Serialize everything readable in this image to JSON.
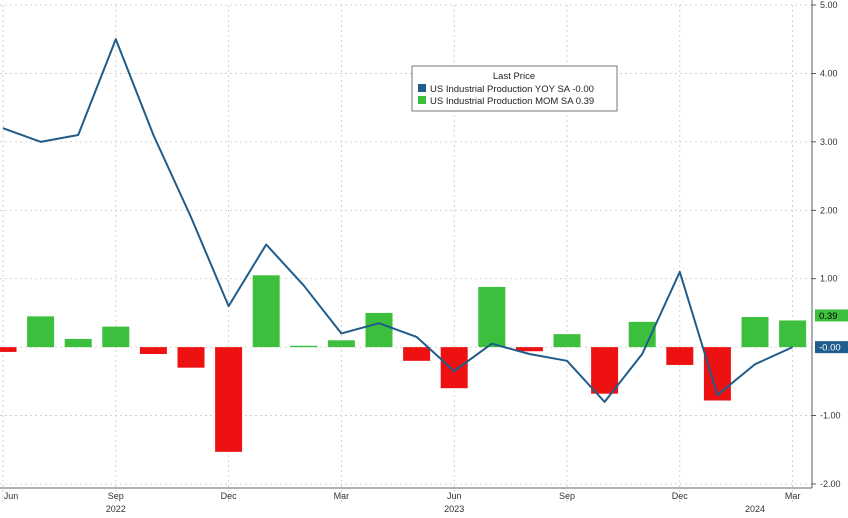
{
  "chart_data": {
    "type": "bar+line",
    "legend": {
      "title": "Last Price",
      "placement": "top-center",
      "entries": [
        {
          "label": "US Industrial Production YOY SA -0.00",
          "color": "#1f5c8b"
        },
        {
          "label": "US Industrial Production MOM SA 0.39",
          "color": "#3cbf3c"
        }
      ]
    },
    "ylim": [
      -2.0,
      5.0
    ],
    "y_ticks": [
      "5.00",
      "4.00",
      "3.00",
      "2.00",
      "1.00",
      "-1.00",
      "-2.00"
    ],
    "x_ticks": [
      "Jun",
      "Sep",
      "Dec",
      "Mar",
      "Jun",
      "Sep",
      "Dec",
      "Mar"
    ],
    "x_tick_index": [
      0,
      3,
      6,
      9,
      12,
      15,
      18,
      21
    ],
    "x_years": [
      "2022",
      "2023",
      "2024"
    ],
    "x_year_index": [
      3,
      12,
      20
    ],
    "categories": [
      "Jun 2022",
      "Jul 2022",
      "Aug 2022",
      "Sep 2022",
      "Oct 2022",
      "Nov 2022",
      "Dec 2022",
      "Jan 2023",
      "Feb 2023",
      "Mar 2023",
      "Apr 2023",
      "May 2023",
      "Jun 2023",
      "Jul 2023",
      "Aug 2023",
      "Sep 2023",
      "Oct 2023",
      "Nov 2023",
      "Dec 2023",
      "Jan 2024",
      "Feb 2024",
      "Mar 2024"
    ],
    "series": [
      {
        "name": "US Industrial Production YOY SA",
        "type": "line",
        "color": "#1f5c8b",
        "values": [
          3.2,
          3.0,
          3.1,
          4.5,
          3.1,
          1.9,
          0.6,
          1.5,
          0.9,
          0.2,
          0.35,
          0.15,
          -0.35,
          0.05,
          -0.1,
          -0.2,
          -0.8,
          -0.1,
          1.1,
          -0.7,
          -0.25,
          -0.0
        ]
      },
      {
        "name": "US Industrial Production MOM SA",
        "type": "bar",
        "color_positive": "#3cbf3c",
        "color_negative": "#ee1111",
        "values": [
          -0.07,
          0.45,
          0.12,
          0.3,
          -0.1,
          -0.3,
          -1.53,
          1.05,
          0.02,
          0.1,
          0.5,
          -0.2,
          -0.6,
          0.88,
          -0.06,
          0.19,
          -0.68,
          0.37,
          -0.26,
          -0.78,
          0.44,
          0.39
        ]
      }
    ],
    "last_value_tags": [
      {
        "text": "0.39",
        "value": 0.39,
        "color": "#3cbf3c",
        "text_color": "#000000"
      },
      {
        "text": "-0.00",
        "value": -0.0,
        "color": "#1f5c8b",
        "text_color": "#ffffff"
      }
    ],
    "grid": true
  }
}
